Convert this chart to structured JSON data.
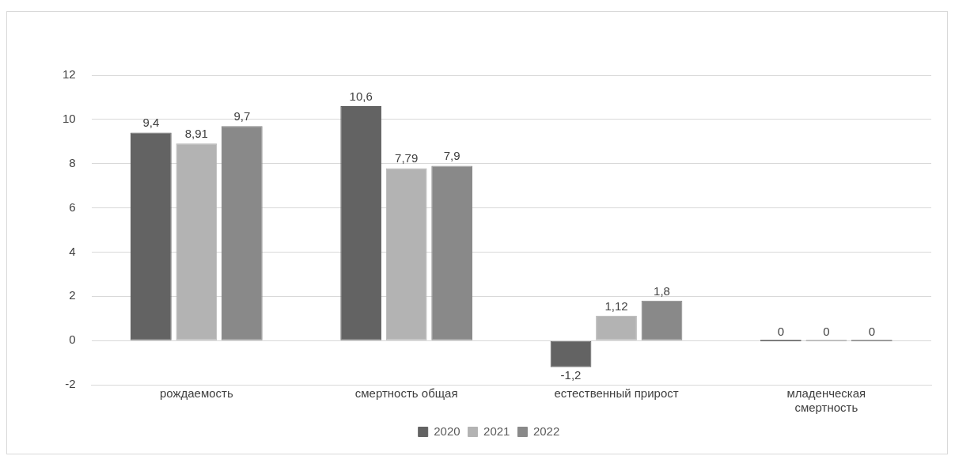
{
  "chart_data": {
    "type": "bar",
    "categories": [
      "рождаемость",
      "смертность общая",
      "естественный прирост",
      "младенческая смертность"
    ],
    "series": [
      {
        "name": "2020",
        "color": "#636363",
        "values": [
          9.4,
          10.6,
          -1.2,
          0
        ],
        "value_labels": [
          "9,4",
          "10,6",
          "-1,2",
          "0"
        ]
      },
      {
        "name": "2021",
        "color": "#b3b3b3",
        "values": [
          8.91,
          7.79,
          1.12,
          0
        ],
        "value_labels": [
          "8,91",
          "7,79",
          "1,12",
          "0"
        ]
      },
      {
        "name": "2022",
        "color": "#898989",
        "values": [
          9.7,
          7.9,
          1.8,
          0
        ],
        "value_labels": [
          "9,7",
          "7,9",
          "1,8",
          "0"
        ]
      }
    ],
    "ylim": [
      -2,
      12
    ],
    "yticks": [
      -2,
      0,
      2,
      4,
      6,
      8,
      10,
      12
    ],
    "grid": "y",
    "legend": "bottom"
  }
}
